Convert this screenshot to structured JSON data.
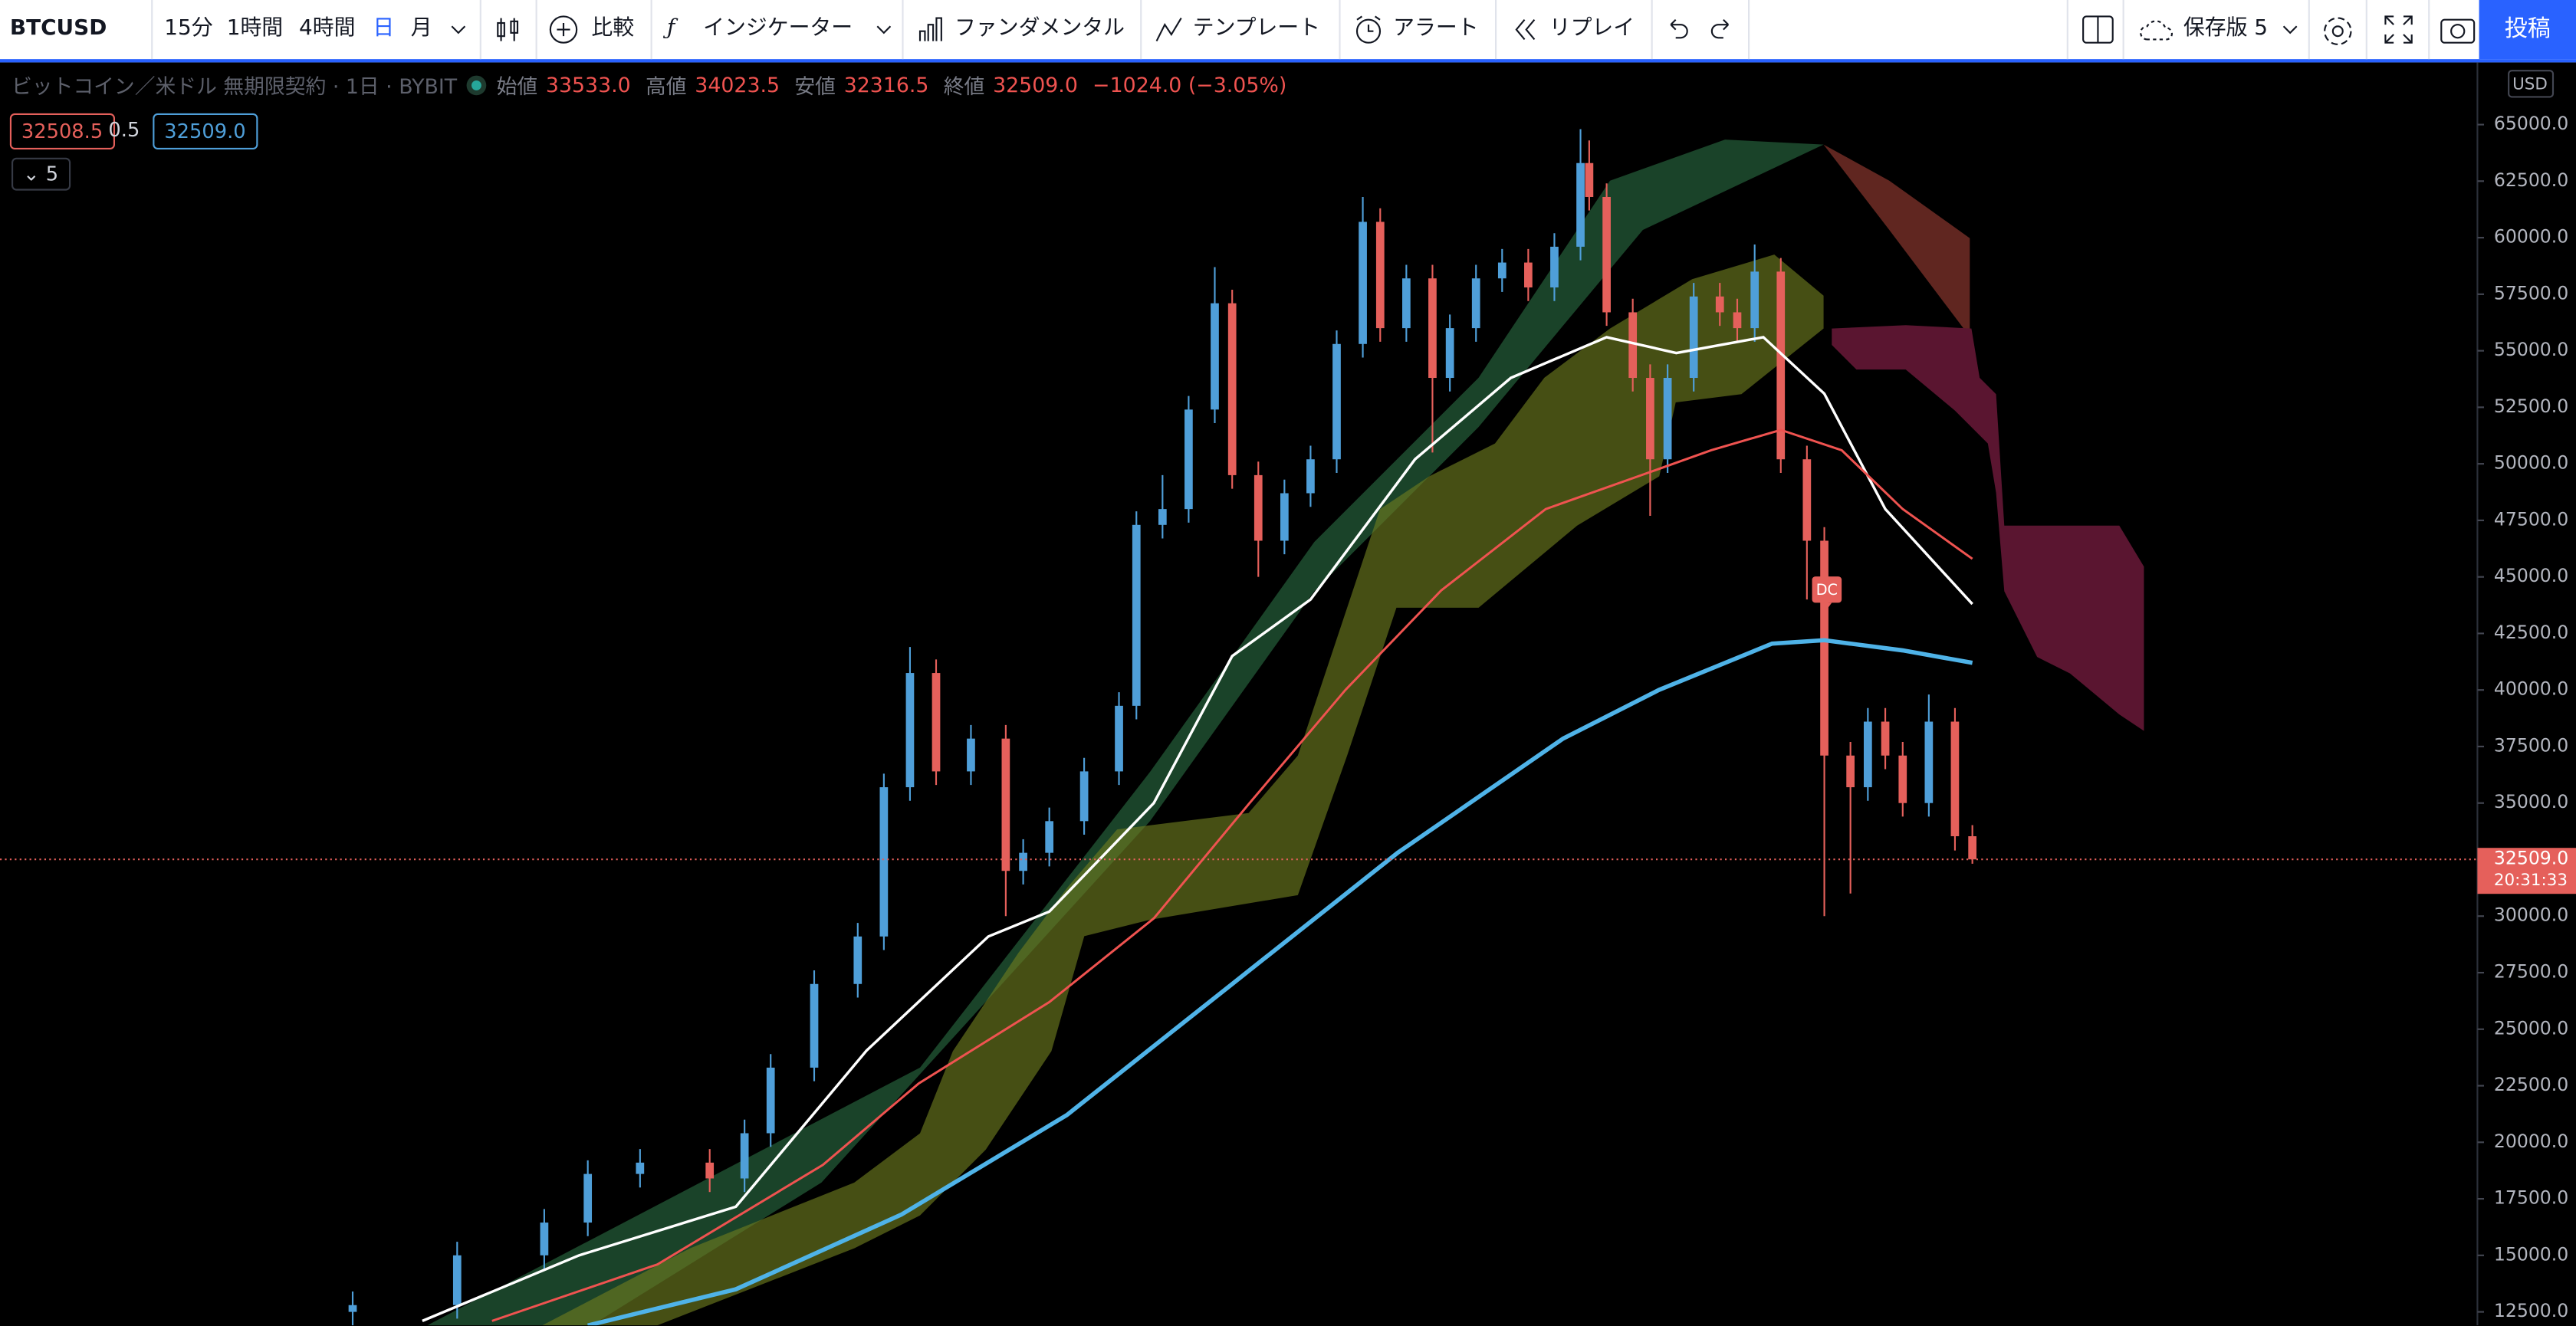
{
  "toolbar": {
    "symbol": "BTCUSD",
    "intervals": [
      "15分",
      "1時間",
      "4時間",
      "日",
      "月"
    ],
    "compare": "比較",
    "indicators": "インジケーター",
    "fundamentals": "ファンダメンタル",
    "templates": "テンプレート",
    "alert": "アラート",
    "replay": "リプレイ",
    "layout_name": "保存版 5",
    "publish": "投稿"
  },
  "legend": {
    "title": "ビットコイン／米ドル 無期限契約 · 1日 · BYBIT",
    "ohlc": [
      {
        "label": "始値",
        "value": "33533.0"
      },
      {
        "label": "高値",
        "value": "34023.5"
      },
      {
        "label": "安値",
        "value": "32316.5"
      },
      {
        "label": "終値",
        "value": "32509.0"
      }
    ],
    "change": "−1024.0 (−3.05%)",
    "bid": "32508.5",
    "spread": "0.5",
    "ask": "32509.0",
    "indicators_count": 5
  },
  "chart_data": {
    "type": "candlestick",
    "currency": "USD",
    "annotation": "DC",
    "grid": false,
    "up_color": "#4f9fd9",
    "down_color": "#e5605b",
    "xlim": [
      -40.5,
      244
    ],
    "ylim": [
      11900,
      67750
    ],
    "yticks": [
      {
        "value": 12500,
        "label": "12500.0"
      },
      {
        "value": 15000,
        "label": "15000.0"
      },
      {
        "value": 17500,
        "label": "17500.0"
      },
      {
        "value": 20000,
        "label": "20000.0"
      },
      {
        "value": 22500,
        "label": "22500.0"
      },
      {
        "value": 25000,
        "label": "25000.0"
      },
      {
        "value": 27500,
        "label": "27500.0"
      },
      {
        "value": 30000,
        "label": "30000.0"
      },
      {
        "value": 32500,
        "label": "32500.0"
      },
      {
        "value": 35000,
        "label": "35000.0"
      },
      {
        "value": 37500,
        "label": "37500.0"
      },
      {
        "value": 40000,
        "label": "40000.0"
      },
      {
        "value": 42500,
        "label": "42500.0"
      },
      {
        "value": 45000,
        "label": "45000.0"
      },
      {
        "value": 47500,
        "label": "47500.0"
      },
      {
        "value": 50000,
        "label": "50000.0"
      },
      {
        "value": 52500,
        "label": "52500.0"
      },
      {
        "value": 55000,
        "label": "55000.0"
      },
      {
        "value": 57500,
        "label": "57500.0"
      },
      {
        "value": 60000,
        "label": "60000.0"
      },
      {
        "value": 62500,
        "label": "62500.0"
      },
      {
        "value": 65000,
        "label": "65000.0"
      }
    ],
    "x": [
      0,
      12,
      22,
      27,
      33,
      41,
      45,
      48,
      53,
      58,
      61,
      64,
      67,
      71,
      75,
      77,
      80,
      84,
      88,
      90,
      93,
      96,
      99,
      101,
      104,
      107,
      110,
      113,
      116,
      118,
      121,
      124,
      126,
      129,
      132,
      135,
      138,
      141,
      142,
      144,
      147,
      149,
      151,
      154,
      157,
      159,
      161,
      164,
      167,
      169,
      172,
      174,
      176,
      178,
      181,
      184,
      186
    ],
    "open": [
      12500,
      12800,
      15000,
      16450,
      18600,
      19100,
      18400,
      20400,
      23300,
      27000,
      29100,
      35700,
      40750,
      36400,
      37850,
      32000,
      32800,
      34200,
      36400,
      39300,
      47300,
      48000,
      52400,
      57100,
      49500,
      46600,
      48700,
      50200,
      55300,
      60700,
      56000,
      58200,
      53800,
      56000,
      58200,
      58900,
      57800,
      59600,
      63300,
      61800,
      56700,
      53800,
      50200,
      53800,
      57400,
      56700,
      56000,
      58500,
      50200,
      46600,
      37100,
      35700,
      38600,
      37100,
      35000,
      38600,
      33533
    ],
    "high": [
      13400,
      15600,
      17050,
      19200,
      19700,
      19700,
      21000,
      23900,
      27600,
      29700,
      36300,
      41900,
      41350,
      38450,
      38450,
      33400,
      34800,
      37000,
      39900,
      47900,
      49500,
      53000,
      58700,
      57700,
      50100,
      49300,
      50800,
      55900,
      61800,
      61300,
      58800,
      58800,
      56600,
      58800,
      59500,
      59500,
      60200,
      64800,
      64300,
      62400,
      57300,
      54400,
      54400,
      58000,
      58000,
      57300,
      59700,
      59100,
      50800,
      47200,
      37700,
      39200,
      39200,
      37700,
      39800,
      39200,
      34023.5
    ],
    "low": [
      11900,
      12200,
      14400,
      15850,
      18000,
      17800,
      17800,
      19800,
      22700,
      26400,
      28500,
      35100,
      35800,
      35800,
      30000,
      31400,
      32200,
      33600,
      35800,
      38700,
      46700,
      47400,
      51800,
      48900,
      45000,
      46000,
      48100,
      49600,
      54700,
      55400,
      55400,
      50500,
      53200,
      55400,
      57600,
      57200,
      57200,
      59000,
      61200,
      56100,
      53200,
      47700,
      49600,
      53200,
      56100,
      55400,
      55400,
      49600,
      44000,
      30000,
      31000,
      35100,
      36500,
      34400,
      34400,
      32900,
      32316.5
    ],
    "close": [
      12800,
      15000,
      16450,
      18600,
      19100,
      18400,
      20400,
      23300,
      27000,
      29100,
      35700,
      40750,
      36400,
      37850,
      32000,
      32800,
      34200,
      36400,
      39300,
      47300,
      48000,
      52400,
      57100,
      49500,
      46600,
      48700,
      50200,
      55300,
      60700,
      56000,
      58200,
      53800,
      56000,
      58200,
      58900,
      57800,
      59600,
      63300,
      61800,
      56700,
      53800,
      50200,
      53800,
      57400,
      56700,
      56000,
      58500,
      50200,
      46600,
      37100,
      35700,
      38600,
      37100,
      35000,
      38600,
      33533,
      32509
    ],
    "series": [
      {
        "color": "#ffffff",
        "x": [
          8,
          26,
          44,
          59,
          73,
          80,
          92,
          101,
          110,
          122,
          133,
          144,
          152,
          162,
          169,
          176,
          186
        ],
        "values": [
          12100,
          15000,
          17150,
          24050,
          29100,
          30200,
          35000,
          41500,
          44000,
          50200,
          53800,
          55600,
          54900,
          55600,
          53100,
          48000,
          43800
        ]
      },
      {
        "color": "#ef5350",
        "x": [
          16,
          35,
          54,
          65,
          80,
          92,
          103,
          114,
          125,
          137,
          148,
          156,
          164,
          171,
          178,
          186
        ],
        "values": [
          12100,
          14600,
          19000,
          22600,
          26200,
          29900,
          35000,
          40000,
          44400,
          48000,
          49500,
          50600,
          51500,
          50600,
          48000,
          45800
        ]
      },
      {
        "color": "#4fb3e8",
        "x": [
          27,
          44,
          63,
          82,
          101,
          120,
          139,
          150,
          163,
          169,
          178,
          186
        ],
        "values": [
          11900,
          13500,
          16800,
          21200,
          27000,
          32800,
          37850,
          40000,
          42050,
          42200,
          41750,
          41200
        ]
      }
    ],
    "current_price": {
      "value": 32509,
      "label": "32509.0"
    },
    "countdown": "20:31:33"
  }
}
